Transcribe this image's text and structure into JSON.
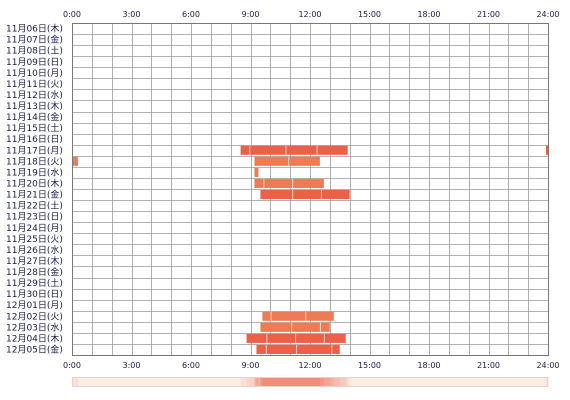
{
  "chart_data": {
    "type": "heatmap",
    "title": "",
    "x_axis": {
      "min_hour": 0,
      "max_hour": 24,
      "major_tick_hours": [
        0,
        3,
        6,
        9,
        12,
        15,
        18,
        21,
        24
      ],
      "tick_labels": [
        "0:00",
        "3:00",
        "6:00",
        "9:00",
        "12:00",
        "15:00",
        "18:00",
        "21:00",
        "24:00"
      ],
      "grid_step_hours": 1
    },
    "days": [
      "11月06日(木)",
      "11月07日(金)",
      "11月08日(土)",
      "11月09日(日)",
      "11月10日(月)",
      "11月11日(火)",
      "11月12日(水)",
      "11月13日(木)",
      "11月14日(金)",
      "11月15日(土)",
      "11月16日(日)",
      "11月17日(月)",
      "11月18日(火)",
      "11月19日(水)",
      "11月20日(木)",
      "11月21日(金)",
      "11月22日(土)",
      "11月23日(日)",
      "11月24日(月)",
      "11月25日(火)",
      "11月26日(水)",
      "11月27日(木)",
      "11月28日(金)",
      "11月29日(土)",
      "11月30日(日)",
      "12月01日(月)",
      "12月02日(火)",
      "12月03日(水)",
      "12月04日(木)",
      "12月05日(金)"
    ],
    "activity": [
      [],
      [],
      [],
      [],
      [],
      [],
      [],
      [],
      [],
      [],
      [],
      [
        [
          8.5,
          13.9,
          "#ee5f47"
        ],
        [
          23.9,
          24.0,
          "#ee5f47"
        ]
      ],
      [
        [
          0.0,
          0.3,
          "#ef7b55"
        ],
        [
          9.2,
          12.5,
          "#ef7b55"
        ]
      ],
      [
        [
          9.2,
          9.4,
          "#ef7b55"
        ]
      ],
      [
        [
          9.2,
          12.7,
          "#ef7b55"
        ]
      ],
      [
        [
          9.5,
          14.0,
          "#ee5f47"
        ]
      ],
      [],
      [],
      [],
      [],
      [],
      [],
      [],
      [],
      [],
      [],
      [
        [
          9.6,
          13.2,
          "#ef7b55"
        ]
      ],
      [
        [
          9.5,
          13.0,
          "#ef7b55"
        ]
      ],
      [
        [
          8.8,
          13.8,
          "#ee5f47"
        ]
      ],
      [
        [
          9.3,
          13.5,
          "#ee5f47"
        ]
      ]
    ]
  },
  "colors": {
    "grid": "#9a9a9a",
    "frame": "#777777",
    "label": "#1a1a4a",
    "bar_light": "#ef7b55",
    "bar_dark": "#ee5f47",
    "heat_low": "#fdece4",
    "heat_high": "#f48a78"
  }
}
